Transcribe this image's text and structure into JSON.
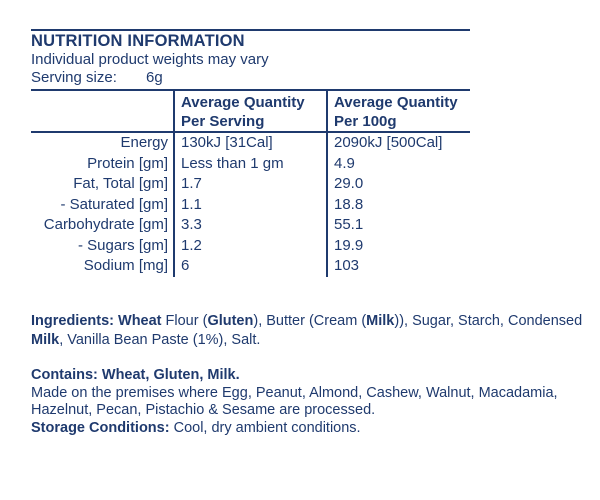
{
  "colors": {
    "ink": "#1f3a6e",
    "background": "#ffffff"
  },
  "header": {
    "title": "NUTRITION INFORMATION",
    "subtitle": "Individual product weights may vary",
    "serving_label": "Serving size:",
    "serving_value": "6g"
  },
  "table": {
    "headers": [
      {
        "line1": "Average Quantity",
        "line2": "Per Serving"
      },
      {
        "line1": "Average Quantity",
        "line2": "Per 100g"
      }
    ],
    "rows": [
      {
        "label": "Energy",
        "per_serving": "130kJ [31Cal]",
        "per_100g": "2090kJ [500Cal]"
      },
      {
        "label": "Protein [gm]",
        "per_serving": "Less than 1 gm",
        "per_100g": "4.9"
      },
      {
        "label": "Fat, Total [gm]",
        "per_serving": "1.7",
        "per_100g": "29.0"
      },
      {
        "label": "- Saturated [gm]",
        "per_serving": "1.1",
        "per_100g": "18.8"
      },
      {
        "label": "Carbohydrate [gm]",
        "per_serving": "3.3",
        "per_100g": "55.1"
      },
      {
        "label": "- Sugars [gm]",
        "per_serving": "1.2",
        "per_100g": "19.9"
      },
      {
        "label": "Sodium [mg]",
        "per_serving": "6",
        "per_100g": "103"
      }
    ]
  },
  "ingredients": {
    "lines": [
      [
        {
          "t": "Ingredients: Wheat",
          "b": true
        },
        {
          "t": " Flour (",
          "b": false
        },
        {
          "t": "Gluten",
          "b": true
        },
        {
          "t": "), Butter (Cream (",
          "b": false
        },
        {
          "t": "Milk",
          "b": true
        },
        {
          "t": ")), Sugar, Starch, Condensed",
          "b": false
        }
      ],
      [
        {
          "t": "Milk",
          "b": true
        },
        {
          "t": ", Vanilla Bean Paste (1%), Salt.",
          "b": false
        }
      ]
    ]
  },
  "contains": {
    "lines": [
      [
        {
          "t": "Contains: Wheat, Gluten, Milk.",
          "b": true
        }
      ],
      [
        {
          "t": "Made on the premises where Egg, Peanut, Almond, Cashew, Walnut, Macadamia,",
          "b": false
        }
      ],
      [
        {
          "t": "Hazelnut, Pecan, Pistachio & Sesame are processed.",
          "b": false
        }
      ],
      [
        {
          "t": "Storage Conditions:",
          "b": true
        },
        {
          "t": " Cool, dry ambient conditions.",
          "b": false
        }
      ]
    ]
  }
}
